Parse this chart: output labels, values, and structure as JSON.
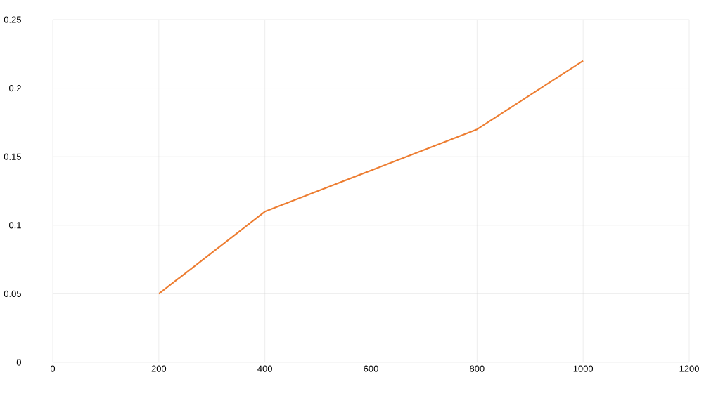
{
  "chart_data": {
    "type": "line",
    "x": [
      200,
      400,
      600,
      800,
      1000
    ],
    "series": [
      {
        "color": "#ed7d31",
        "values": [
          0.05,
          0.11,
          0.14,
          0.17,
          0.22
        ]
      }
    ],
    "xlim": [
      0,
      1200
    ],
    "xticks": [
      0,
      200,
      400,
      600,
      800,
      1000,
      1200
    ],
    "ylim": [
      0,
      0.25
    ],
    "yticks": [
      0,
      0.05,
      0.1,
      0.15,
      0.2,
      0.25
    ],
    "grid": true,
    "marker": "none",
    "line_style": "solid"
  }
}
